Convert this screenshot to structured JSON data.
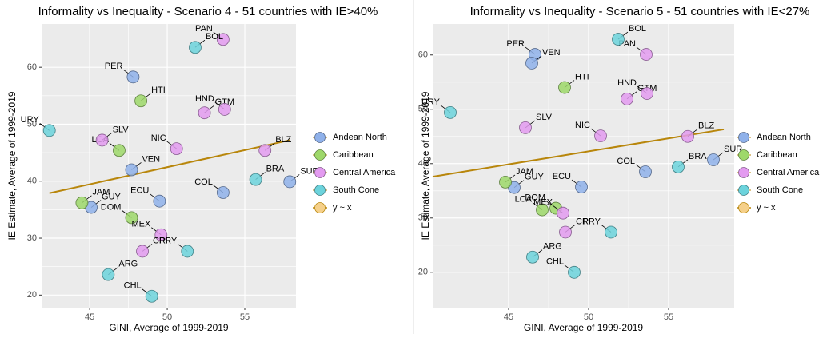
{
  "chart_data": [
    {
      "type": "scatter",
      "title": "Informality vs Inequality - Scenario 4 - 51 countries with IE>40%",
      "x_label": "GINI, Average of 1999-2019",
      "y_label": "IE Estimate, Average of 1999-2019",
      "xlim": [
        41.9,
        58.3
      ],
      "ylim": [
        17.8,
        67.6
      ],
      "xticks": [
        45,
        50,
        55
      ],
      "yticks": [
        20,
        30,
        40,
        50,
        60
      ],
      "grid": true,
      "legend": "right",
      "series": [
        {
          "name": "Andean North",
          "color": "#8FB1EA",
          "labels": [
            "PER",
            "VEN",
            "ECU",
            "GUY",
            "COL",
            "SUR"
          ],
          "x": [
            47.8,
            47.7,
            49.5,
            45.1,
            53.6,
            57.9
          ],
          "y": [
            58.3,
            42.0,
            36.5,
            35.4,
            38.0,
            39.9
          ]
        },
        {
          "name": "Caribbean",
          "color": "#9ED86A",
          "labels": [
            "HTI",
            "LCA",
            "JAM",
            "DOM"
          ],
          "x": [
            48.3,
            46.9,
            44.5,
            47.7
          ],
          "y": [
            54.1,
            45.4,
            36.2,
            33.6
          ]
        },
        {
          "name": "Central America",
          "color": "#E39BF0",
          "labels": [
            "PAN",
            "GTM",
            "HND",
            "SLV",
            "NIC",
            "BLZ",
            "MEX",
            "CRI"
          ],
          "x": [
            53.6,
            52.4,
            53.7,
            45.8,
            50.6,
            56.3,
            49.6,
            48.4
          ],
          "y": [
            64.9,
            52.0,
            52.6,
            47.2,
            45.7,
            45.4,
            30.6,
            27.7
          ]
        },
        {
          "name": "South Cone",
          "color": "#6CD3DC",
          "labels": [
            "BOL",
            "URY",
            "BRA",
            "PRY",
            "ARG",
            "CHL"
          ],
          "x": [
            51.8,
            42.4,
            55.7,
            51.3,
            46.2,
            49.0
          ],
          "y": [
            63.5,
            48.9,
            40.3,
            27.7,
            23.6,
            19.8
          ]
        }
      ],
      "trend": {
        "name": "y ~ x",
        "color": "#B8860B",
        "x": [
          42.4,
          57.9
        ],
        "y": [
          37.9,
          47.2
        ]
      }
    },
    {
      "type": "scatter",
      "title": "Informality vs Inequality - Scenario 5 - 51 countries with IE<27%",
      "x_label": "GINI, Average of 1999-2019",
      "y_label": "IE Estimate, Average of 1999-2019",
      "xlim": [
        40.25,
        59.1
      ],
      "ylim": [
        13.5,
        65.7
      ],
      "xticks": [
        45,
        50,
        55
      ],
      "yticks": [
        20,
        30,
        40,
        50,
        60
      ],
      "grid": true,
      "legend": "right",
      "series": [
        {
          "name": "Andean North",
          "color": "#8FB1EA",
          "labels": [
            "PER",
            "VEN",
            "ECU",
            "GUY",
            "COL",
            "SUR"
          ],
          "x": [
            46.65,
            46.45,
            49.55,
            45.35,
            53.55,
            57.8
          ],
          "y": [
            60.1,
            58.5,
            35.7,
            35.6,
            38.5,
            40.7
          ]
        },
        {
          "name": "Caribbean",
          "color": "#9ED86A",
          "labels": [
            "HTI",
            "LCA",
            "JAM",
            "DOM"
          ],
          "x": [
            48.5,
            47.1,
            44.8,
            47.95
          ],
          "y": [
            54.0,
            31.5,
            36.6,
            31.8
          ]
        },
        {
          "name": "Central America",
          "color": "#E39BF0",
          "labels": [
            "PAN",
            "GTM",
            "HND",
            "SLV",
            "NIC",
            "BLZ",
            "MEX",
            "CRI"
          ],
          "x": [
            53.6,
            52.4,
            53.65,
            46.05,
            50.75,
            56.2,
            48.4,
            48.55
          ],
          "y": [
            60.1,
            51.9,
            52.9,
            46.6,
            45.1,
            45.0,
            30.9,
            27.4
          ]
        },
        {
          "name": "South Cone",
          "color": "#6CD3DC",
          "labels": [
            "BOL",
            "URY",
            "BRA",
            "PRY",
            "ARG",
            "CHL"
          ],
          "x": [
            51.85,
            41.35,
            55.6,
            51.4,
            46.5,
            49.1
          ],
          "y": [
            62.9,
            49.4,
            39.4,
            27.4,
            22.8,
            20.0
          ]
        }
      ],
      "trend": {
        "name": "y ~ x",
        "color": "#B8860B",
        "x": [
          40.25,
          58.45
        ],
        "y": [
          37.6,
          46.3
        ]
      }
    }
  ]
}
